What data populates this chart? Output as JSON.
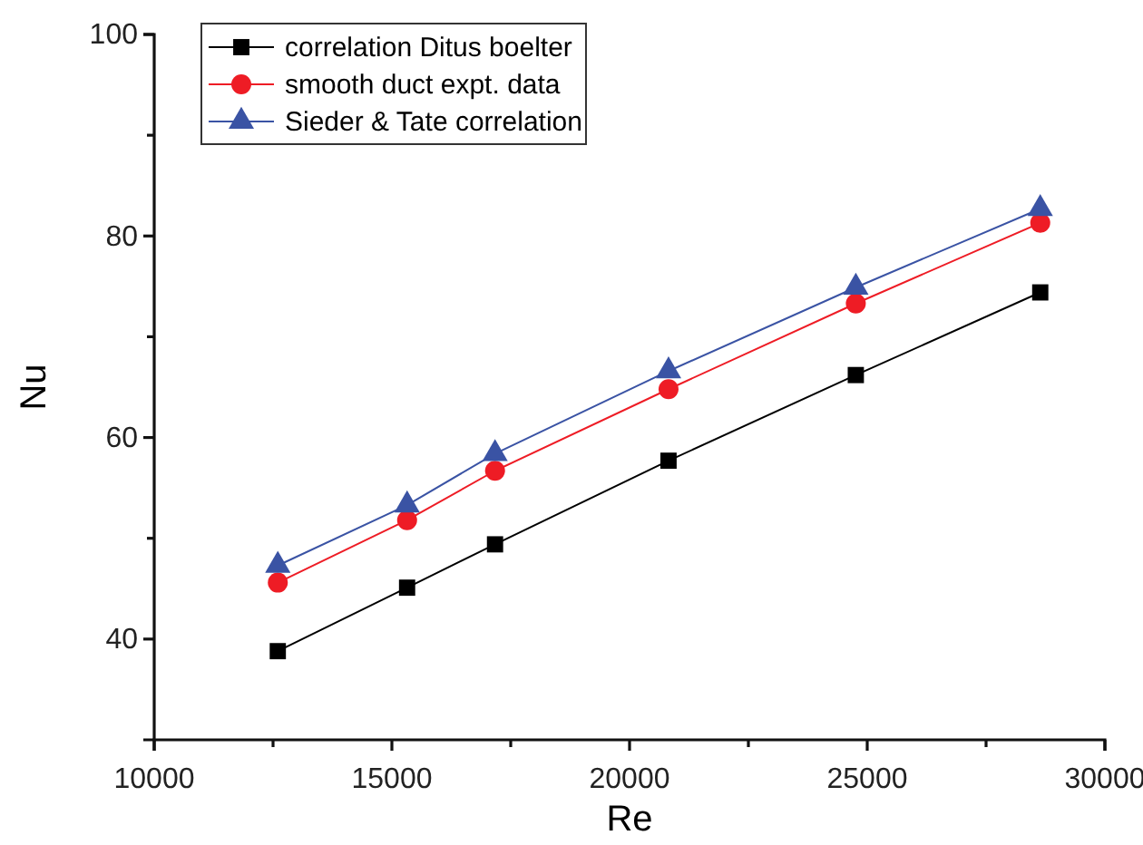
{
  "chart_data": {
    "type": "line",
    "xlabel": "Re",
    "ylabel": "Nu",
    "x": [
      12600,
      15320,
      17170,
      20820,
      24760,
      28640
    ],
    "series": [
      {
        "name": "correlation Ditus boelter",
        "color": "#000000",
        "marker": "square",
        "values": [
          38.8,
          45.1,
          49.4,
          57.7,
          66.2,
          74.4
        ]
      },
      {
        "name": "smooth duct expt. data",
        "color": "#ee1c25",
        "marker": "circle",
        "values": [
          45.6,
          51.8,
          56.7,
          64.8,
          73.3,
          81.3
        ]
      },
      {
        "name": "Sieder & Tate correlation",
        "color": "#3a53a4",
        "marker": "triangle",
        "values": [
          47.3,
          53.3,
          58.4,
          66.6,
          74.9,
          82.7
        ]
      }
    ],
    "xlim": [
      10000,
      30000
    ],
    "xticks": [
      10000,
      {
        "value": 12500,
        "label": null
      },
      15000,
      {
        "value": 17500,
        "label": null
      },
      20000,
      {
        "value": 22500,
        "label": null
      },
      25000,
      {
        "value": 27500,
        "label": null
      },
      30000
    ],
    "ylim": [
      30,
      100
    ],
    "yticks": [
      40,
      {
        "value": 50,
        "label": null
      },
      60,
      {
        "value": 70,
        "label": null
      },
      80,
      {
        "value": 90,
        "label": null
      },
      100
    ],
    "grid": false,
    "legend": "top left",
    "line_style": "solid"
  }
}
